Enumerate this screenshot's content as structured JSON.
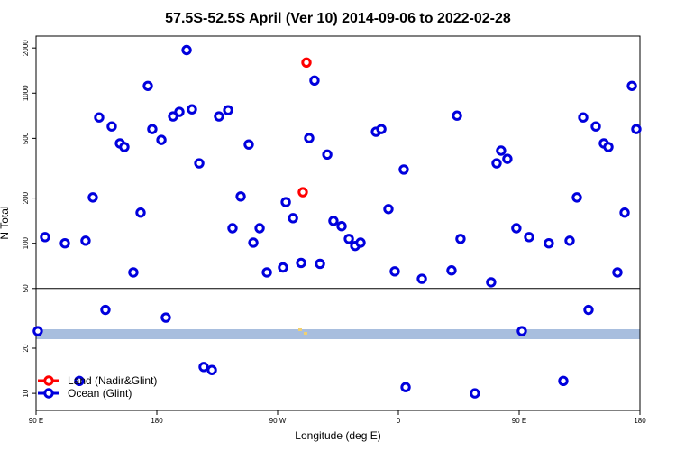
{
  "chart_data": {
    "type": "scatter",
    "title": "57.5S-52.5S April (Ver 10)   2014-09-06 to 2022-02-28",
    "x_label": "Longitude (deg E)",
    "y_label": "N Total",
    "log_y": true,
    "legend": "bottom-left",
    "split_at": 50,
    "xlim": [
      90,
      540
    ],
    "ylim": [
      7.7,
      2400
    ],
    "xticks": [
      {
        "value": 90,
        "label": "90 E"
      },
      180,
      {
        "value": 270,
        "label": "90 W"
      },
      {
        "value": 360,
        "label": "0"
      },
      {
        "value": 450,
        "label": "90 E"
      },
      {
        "value": 540,
        "label": "180"
      }
    ],
    "yticks": [
      10,
      20,
      50,
      100,
      200,
      500,
      1000,
      2000
    ],
    "series": [
      {
        "name": "Land (Nadir&Glint)",
        "color": "#ff0000",
        "x": [
          291.5,
          288.8
        ],
        "values": [
          1600,
          219
        ]
      },
      {
        "name": "Ocean (Glint)",
        "color": "#0000dd",
        "x": [
          91.3,
          96.7,
          111.5,
          122.2,
          126.9,
          132.3,
          137,
          141.7,
          146.4,
          152.5,
          155.8,
          162.5,
          167.9,
          173.3,
          176.6,
          183.4,
          186.7,
          192.1,
          196.8,
          202.2,
          206.2,
          211.6,
          214.9,
          221,
          226.3,
          233.1,
          236.4,
          242.5,
          248.5,
          251.9,
          256.6,
          262,
          274,
          276.1,
          281.5,
          287.5,
          293.5,
          297.5,
          301.6,
          307,
          311.6,
          317.7,
          323.1,
          327.8,
          331.8,
          343.3,
          347.3,
          352.6,
          357.3,
          364,
          365.4,
          377.5,
          399.6,
          403.7,
          406.3,
          417,
          429.1,
          433.2,
          436.5,
          441.2,
          447.9,
          452,
          457.4,
          472.1,
          482.9,
          487.6,
          493,
          497.7,
          501.7,
          507.1,
          513.1,
          516.5,
          523.2,
          528.6,
          534,
          537.3
        ],
        "values": [
          26,
          110,
          100,
          12.1,
          104,
          202,
          689,
          36,
          600,
          463,
          438,
          64,
          160,
          1117,
          576,
          488,
          32,
          700,
          750,
          1937,
          780,
          341,
          15,
          14.3,
          700,
          770,
          126,
          205,
          455,
          101,
          126,
          64,
          69,
          188,
          147,
          74,
          502,
          1213,
          73,
          390,
          141,
          130,
          107,
          96,
          101,
          553,
          576,
          169,
          65,
          310,
          11,
          58,
          66,
          708,
          107,
          10,
          55,
          341,
          414,
          365,
          126,
          26,
          110,
          100,
          12.1,
          104,
          202,
          689,
          36,
          600,
          463,
          438,
          64,
          160,
          1117,
          576
        ]
      }
    ]
  }
}
